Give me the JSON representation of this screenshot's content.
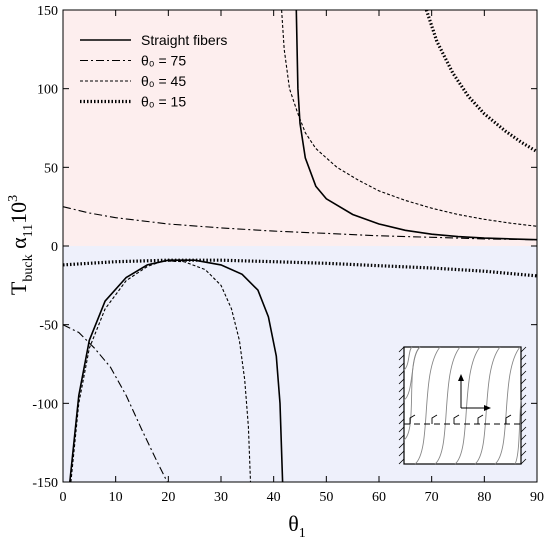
{
  "chart_data": {
    "type": "line",
    "xlabel": "θ",
    "xlabel_sub": "1",
    "ylabel_parts": {
      "t": "T",
      "buck": "buck",
      "alpha": " α",
      "sub11": "11",
      "ten": "10",
      "exp": "3"
    },
    "xlim": [
      0,
      90
    ],
    "ylim": [
      -150,
      150
    ],
    "xticks": [
      0,
      10,
      20,
      30,
      40,
      50,
      60,
      70,
      80,
      90
    ],
    "yticks": [
      -150,
      -100,
      -50,
      0,
      50,
      100,
      150
    ],
    "grid": false,
    "legend_position": "top-left",
    "colors": {
      "upper_fill": "#fdeeee",
      "lower_fill": "#eef0fb",
      "line": "#000000"
    },
    "series": [
      {
        "name": "Straight fibers",
        "style": "solid",
        "segments": [
          [
            [
              1.3,
              -150
            ],
            [
              3,
              -95
            ],
            [
              5,
              -60
            ],
            [
              8,
              -35
            ],
            [
              12,
              -20
            ],
            [
              16,
              -12
            ],
            [
              20,
              -9
            ],
            [
              25,
              -9
            ],
            [
              30,
              -12
            ],
            [
              34,
              -18
            ],
            [
              37,
              -28
            ],
            [
              39,
              -45
            ],
            [
              40.5,
              -70
            ],
            [
              41.2,
              -100
            ],
            [
              41.7,
              -150
            ]
          ],
          [
            [
              44.3,
              150
            ],
            [
              44.6,
              100
            ],
            [
              45,
              78
            ],
            [
              46,
              56
            ],
            [
              48,
              38
            ],
            [
              50,
              30
            ],
            [
              55,
              20
            ],
            [
              60,
              14
            ],
            [
              65,
              10
            ],
            [
              70,
              7.5
            ],
            [
              75,
              6
            ],
            [
              80,
              5
            ],
            [
              85,
              4.5
            ],
            [
              90,
              4
            ]
          ]
        ]
      },
      {
        "name": "θ₀ = 75",
        "style": "dashdot",
        "segments": [
          [
            [
              0,
              -50
            ],
            [
              3,
              -55
            ],
            [
              6,
              -65
            ],
            [
              9,
              -77
            ],
            [
              12,
              -95
            ],
            [
              15,
              -117
            ],
            [
              18,
              -138
            ],
            [
              19.8,
              -150
            ]
          ],
          [
            [
              0,
              25
            ],
            [
              5,
              21
            ],
            [
              10,
              18
            ],
            [
              20,
              14
            ],
            [
              30,
              11.5
            ],
            [
              40,
              9.5
            ],
            [
              50,
              8
            ],
            [
              60,
              6.5
            ],
            [
              70,
              5.5
            ],
            [
              80,
              4.5
            ],
            [
              90,
              4
            ]
          ]
        ]
      },
      {
        "name": "θ₀ = 45",
        "style": "dashed",
        "segments": [
          [
            [
              1.5,
              -150
            ],
            [
              3,
              -100
            ],
            [
              5,
              -65
            ],
            [
              8,
              -40
            ],
            [
              12,
              -22
            ],
            [
              16,
              -13
            ],
            [
              19,
              -9.5
            ],
            [
              23,
              -10
            ],
            [
              27,
              -15
            ],
            [
              30,
              -25
            ],
            [
              32,
              -40
            ],
            [
              33.5,
              -60
            ],
            [
              34.5,
              -85
            ],
            [
              35.2,
              -115
            ],
            [
              35.6,
              -150
            ]
          ],
          [
            [
              41.5,
              150
            ],
            [
              42,
              125
            ],
            [
              43,
              100
            ],
            [
              44.5,
              85
            ],
            [
              46,
              72
            ],
            [
              48,
              62
            ],
            [
              52,
              50
            ],
            [
              56,
              42
            ],
            [
              60,
              35
            ],
            [
              65,
              29
            ],
            [
              70,
              24
            ],
            [
              75,
              20
            ],
            [
              80,
              17
            ],
            [
              85,
              14.5
            ],
            [
              90,
              12.5
            ]
          ]
        ]
      },
      {
        "name": "θ₀ = 15",
        "style": "dotted",
        "segments": [
          [
            [
              0,
              -12
            ],
            [
              10,
              -10
            ],
            [
              20,
              -9
            ],
            [
              30,
              -9
            ],
            [
              40,
              -10
            ],
            [
              50,
              -11
            ],
            [
              60,
              -12.5
            ],
            [
              70,
              -14
            ],
            [
              80,
              -16
            ],
            [
              90,
              -19
            ]
          ],
          [
            [
              69,
              150
            ],
            [
              71,
              130
            ],
            [
              74,
              110
            ],
            [
              77,
              95
            ],
            [
              80,
              84
            ],
            [
              84,
              73
            ],
            [
              87,
              66
            ],
            [
              90,
              60
            ]
          ]
        ]
      }
    ]
  }
}
